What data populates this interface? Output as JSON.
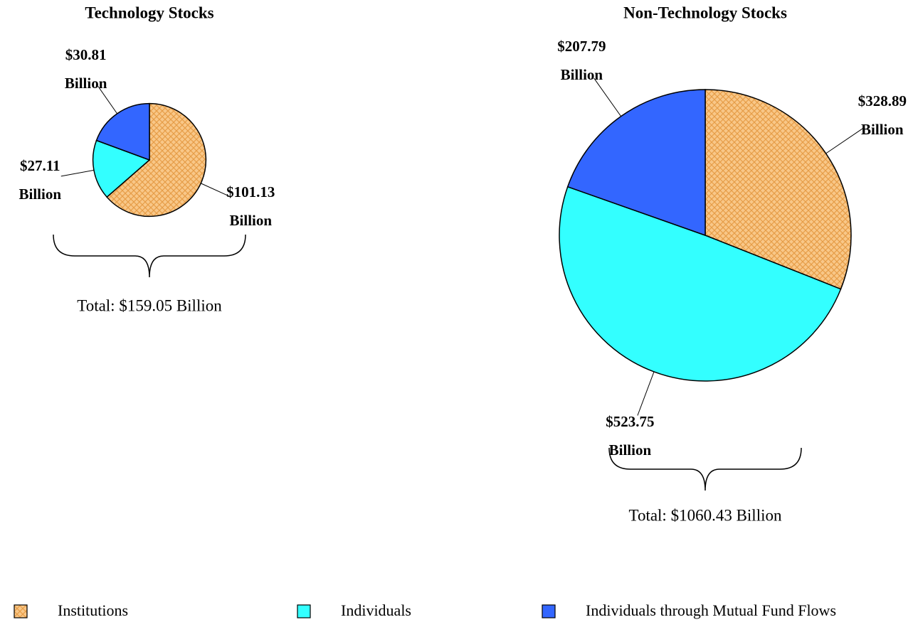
{
  "chart_data": [
    {
      "type": "pie",
      "title": "Technology Stocks",
      "categories": [
        "Institutions",
        "Individuals",
        "Individuals through Mutual Fund Flows"
      ],
      "values": [
        101.13,
        27.11,
        30.81
      ],
      "value_labels": [
        "$101.13 Billion",
        "$27.11 Billion",
        "$30.81 Billion"
      ],
      "colors": [
        "#f5b461",
        "#33ffff",
        "#3366ff"
      ],
      "patterns": [
        "crosshatch",
        null,
        null
      ],
      "annotation": "Total: $159.05 Billion"
    },
    {
      "type": "pie",
      "title": "Non-Technology Stocks",
      "categories": [
        "Institutions",
        "Individuals",
        "Individuals through Mutual Fund Flows"
      ],
      "values": [
        328.89,
        523.75,
        207.79
      ],
      "value_labels": [
        "$328.89 Billion",
        "$523.75 Billion",
        "$207.79 Billion"
      ],
      "colors": [
        "#f5b461",
        "#33ffff",
        "#3366ff"
      ],
      "patterns": [
        "crosshatch",
        null,
        null
      ],
      "annotation": "Total: $1060.43 Billion"
    }
  ]
}
